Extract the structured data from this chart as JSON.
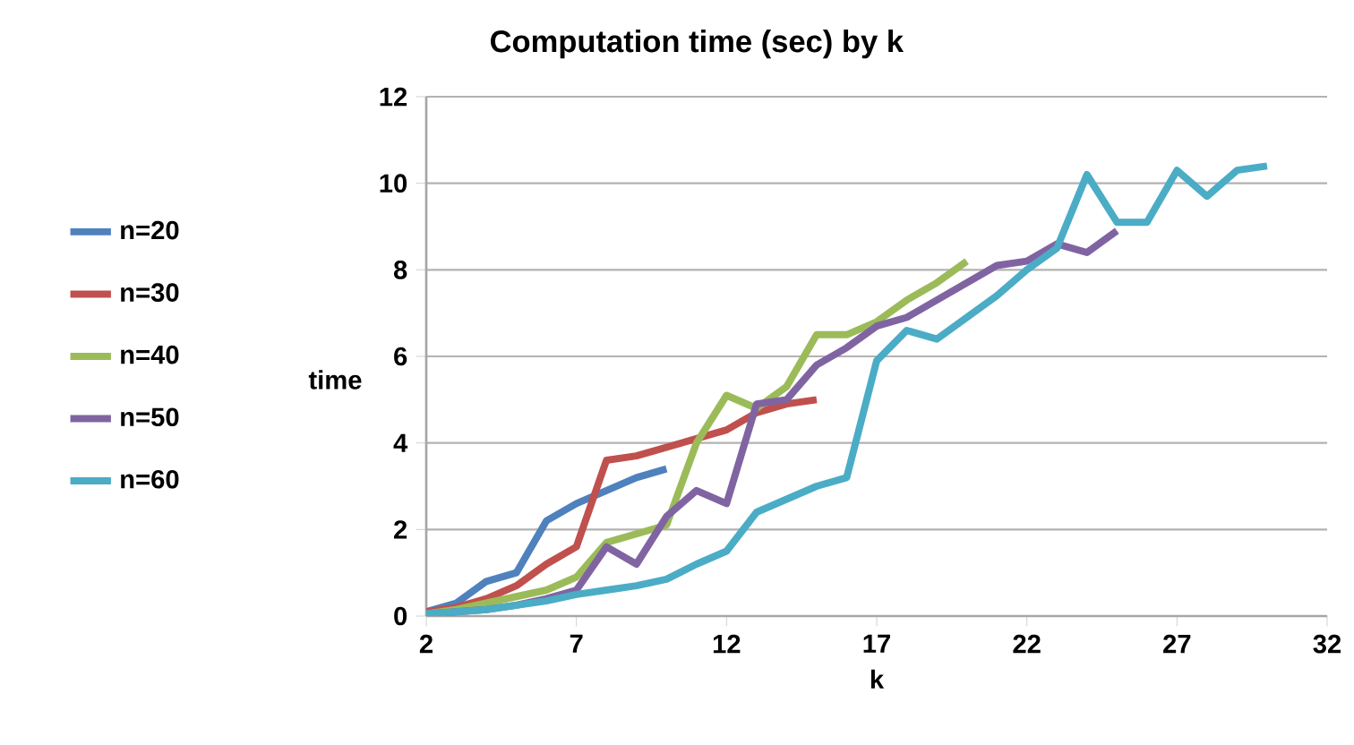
{
  "chart_data": {
    "type": "line",
    "title": "Computation time (sec) by k",
    "xlabel": "k",
    "ylabel": "time",
    "xlim": [
      2,
      32
    ],
    "xticks": [
      2,
      7,
      12,
      17,
      22,
      27,
      32
    ],
    "ylim": [
      0,
      12
    ],
    "yticks": [
      0,
      2,
      4,
      6,
      8,
      10,
      12
    ],
    "grid": "y",
    "legend": "left",
    "marker": "none",
    "line_style": "solid",
    "series": [
      {
        "name": "n=20",
        "color": "#4f81bd",
        "x": [
          2,
          3,
          4,
          5,
          6,
          7,
          8,
          9,
          10
        ],
        "values": [
          0.1,
          0.3,
          0.8,
          1.0,
          2.2,
          2.6,
          2.9,
          3.2,
          3.4
        ]
      },
      {
        "name": "n=30",
        "color": "#c0504d",
        "x": [
          2,
          3,
          4,
          5,
          6,
          7,
          8,
          9,
          10,
          11,
          12,
          13,
          14,
          15
        ],
        "values": [
          0.1,
          0.2,
          0.4,
          0.7,
          1.2,
          1.6,
          3.6,
          3.7,
          3.9,
          4.1,
          4.3,
          4.7,
          4.9,
          5.0
        ]
      },
      {
        "name": "n=40",
        "color": "#9bbb59",
        "x": [
          2,
          3,
          4,
          5,
          6,
          7,
          8,
          9,
          10,
          11,
          12,
          13,
          14,
          15,
          16,
          17,
          18,
          19,
          20
        ],
        "values": [
          0.05,
          0.15,
          0.3,
          0.45,
          0.6,
          0.9,
          1.7,
          1.9,
          2.1,
          4.0,
          5.1,
          4.8,
          5.3,
          6.5,
          6.5,
          6.8,
          7.3,
          7.7,
          8.2
        ]
      },
      {
        "name": "n=50",
        "color": "#8064a2",
        "x": [
          2,
          3,
          4,
          5,
          6,
          7,
          8,
          9,
          10,
          11,
          12,
          13,
          14,
          15,
          16,
          17,
          18,
          19,
          20,
          21,
          22,
          23,
          24,
          25
        ],
        "values": [
          0.05,
          0.1,
          0.15,
          0.25,
          0.4,
          0.6,
          1.6,
          1.2,
          2.3,
          2.9,
          2.6,
          4.9,
          5.0,
          5.8,
          6.2,
          6.7,
          6.9,
          7.3,
          7.7,
          8.1,
          8.2,
          8.6,
          8.4,
          8.9
        ]
      },
      {
        "name": "n=60",
        "color": "#4bacc6",
        "x": [
          2,
          3,
          4,
          5,
          6,
          7,
          8,
          9,
          10,
          11,
          12,
          13,
          14,
          15,
          16,
          17,
          18,
          19,
          20,
          21,
          22,
          23,
          24,
          25,
          26,
          27,
          28,
          29,
          30
        ],
        "values": [
          0.05,
          0.1,
          0.15,
          0.25,
          0.35,
          0.5,
          0.6,
          0.7,
          0.85,
          1.2,
          1.5,
          2.4,
          2.7,
          3.0,
          3.2,
          5.9,
          6.6,
          6.4,
          6.9,
          7.4,
          8.0,
          8.5,
          10.2,
          9.1,
          9.1,
          10.3,
          9.7,
          10.3,
          10.4
        ]
      }
    ]
  }
}
